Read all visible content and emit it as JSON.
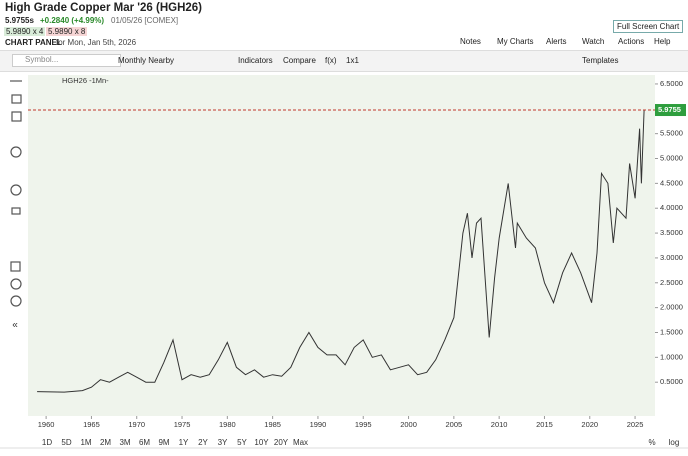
{
  "header": {
    "title": "High Grade Copper Mar '26 (HGH26)",
    "last": "5.9755s",
    "change": "+0.2840 (+4.99%)",
    "date": "01/05/26 [COMEX]",
    "bid": "5.9890 x 4",
    "ask": "5.9890 x 8",
    "panel": "CHART PANEL",
    "panel_date": "for Mon, Jan 5th, 2026"
  },
  "top_links": {
    "fullscreen": "Full Screen Chart",
    "notes": "Notes",
    "mycharts": "My Charts",
    "alerts": "Alerts",
    "watch": "Watch",
    "actions": "Actions",
    "help": "Help"
  },
  "toolbar": {
    "symbol": "Symbol...",
    "period": "Monthly Nearby",
    "indicators": "Indicators",
    "compare": "Compare",
    "fx": "f(x)",
    "layout": "1x1",
    "templates": "Templates"
  },
  "ranges": [
    "1D",
    "5D",
    "1M",
    "2M",
    "3M",
    "6M",
    "9M",
    "1Y",
    "2Y",
    "3Y",
    "5Y",
    "10Y",
    "20Y",
    "Max"
  ],
  "scale_options": {
    "percent": "%",
    "log": "log"
  },
  "chart_data": {
    "type": "line",
    "legend": "HGH26 -1Mn-",
    "color": "#333333",
    "last_label": "5.9755",
    "last_value": 5.9755,
    "x": [
      1959,
      1962,
      1964,
      1965,
      1966,
      1967,
      1968,
      1969,
      1970,
      1971,
      1972,
      1973,
      1974,
      1975,
      1976,
      1977,
      1978,
      1979,
      1980,
      1981,
      1982,
      1983,
      1984,
      1985,
      1986,
      1987,
      1988,
      1989,
      1990,
      1991,
      1992,
      1993,
      1994,
      1995,
      1996,
      1997,
      1998,
      1999,
      2000,
      2001,
      2002,
      2003,
      2004,
      2005,
      2006,
      2006.5,
      2007,
      2007.5,
      2008,
      2008.9,
      2009.5,
      2010,
      2011,
      2011.8,
      2012,
      2013,
      2014,
      2015,
      2016,
      2017,
      2018,
      2019,
      2020.2,
      2020.8,
      2021.3,
      2022,
      2022.6,
      2023,
      2024,
      2024.4,
      2025,
      2025.5,
      2025.7,
      2026
    ],
    "values": [
      0.31,
      0.3,
      0.33,
      0.4,
      0.55,
      0.5,
      0.6,
      0.7,
      0.6,
      0.5,
      0.5,
      0.9,
      1.35,
      0.55,
      0.65,
      0.6,
      0.65,
      0.95,
      1.3,
      0.8,
      0.65,
      0.75,
      0.6,
      0.65,
      0.62,
      0.8,
      1.2,
      1.5,
      1.2,
      1.05,
      1.05,
      0.85,
      1.2,
      1.35,
      1.0,
      1.05,
      0.75,
      0.8,
      0.85,
      0.65,
      0.7,
      0.95,
      1.35,
      1.8,
      3.5,
      3.9,
      3.0,
      3.7,
      3.8,
      1.4,
      2.6,
      3.4,
      4.5,
      3.2,
      3.7,
      3.4,
      3.2,
      2.5,
      2.1,
      2.7,
      3.1,
      2.7,
      2.1,
      3.1,
      4.7,
      4.5,
      3.3,
      4.0,
      3.8,
      4.9,
      4.2,
      5.6,
      4.5,
      5.9755
    ],
    "xlim": [
      1958,
      2027.2
    ],
    "xticks": [
      1960,
      1965,
      1970,
      1975,
      1980,
      1985,
      1990,
      1995,
      2000,
      2005,
      2010,
      2015,
      2020,
      2025
    ],
    "ylim": [
      -0.18,
      6.68
    ],
    "yticks": [
      {
        "value": 0.5,
        "label": "0.5000"
      },
      {
        "value": 1,
        "label": "1.0000"
      },
      {
        "value": 1.5,
        "label": "1.5000"
      },
      {
        "value": 2,
        "label": "2.0000"
      },
      {
        "value": 2.5,
        "label": "2.5000"
      },
      {
        "value": 3,
        "label": "3.0000"
      },
      {
        "value": 3.5,
        "label": "3.5000"
      },
      {
        "value": 4,
        "label": "4.0000"
      },
      {
        "value": 4.5,
        "label": "4.5000"
      },
      {
        "value": 5,
        "label": "5.0000"
      },
      {
        "value": 5.5,
        "label": "5.5000"
      },
      {
        "value": 6,
        "label": "6.0000"
      },
      {
        "value": 6.5,
        "label": "6.5000"
      }
    ],
    "grid": false
  }
}
